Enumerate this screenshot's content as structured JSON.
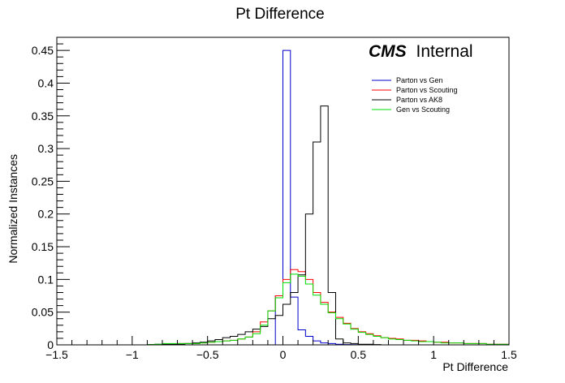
{
  "chart_data": {
    "type": "line",
    "title": "Pt Difference",
    "xlabel": "Pt Difference",
    "ylabel": "Normalized Instances",
    "xlim": [
      -1.5,
      1.5
    ],
    "ylim": [
      0,
      0.47
    ],
    "x_ticks": [
      -1.5,
      -1,
      -0.5,
      0,
      0.5,
      1,
      1.5
    ],
    "x_tick_labels": [
      "−1.5",
      "−1",
      "−0.5",
      "0",
      "0.5",
      "1",
      "1.5"
    ],
    "y_ticks": [
      0,
      0.05,
      0.1,
      0.15,
      0.2,
      0.25,
      0.3,
      0.35,
      0.4,
      0.45
    ],
    "y_tick_labels": [
      "0",
      "0.05",
      "0.1",
      "0.15",
      "0.2",
      "0.25",
      "0.3",
      "0.35",
      "0.4",
      "0.45"
    ],
    "legend_position": "top-right",
    "annotation": {
      "bold": "CMS",
      "text": "Internal"
    },
    "bin_width": 0.05,
    "bin_start": -1.5,
    "series": [
      {
        "name": "Parton vs Gen",
        "color": "#0000cc",
        "values": [
          0,
          0,
          0,
          0,
          0,
          0,
          0,
          0,
          0,
          0,
          0,
          0,
          0,
          0,
          0,
          0,
          0,
          0,
          0,
          0,
          0,
          0,
          0,
          0,
          0,
          0,
          0,
          0,
          0,
          0.075,
          0.45,
          0.073,
          0.023,
          0.013,
          0.006,
          0.003,
          0.002,
          0.001,
          0.0005,
          0.0003,
          0,
          0,
          0,
          0,
          0,
          0,
          0,
          0,
          0,
          0,
          0,
          0,
          0,
          0,
          0,
          0,
          0,
          0,
          0,
          0
        ]
      },
      {
        "name": "Parton vs Scouting",
        "color": "#ff0000",
        "values": [
          0,
          0,
          0,
          0,
          0,
          0,
          0,
          0,
          0,
          0,
          0,
          0,
          0,
          0.0005,
          0.001,
          0.001,
          0.002,
          0.002,
          0.002,
          0.003,
          0.004,
          0.005,
          0.006,
          0.007,
          0.009,
          0.012,
          0.02,
          0.035,
          0.052,
          0.075,
          0.1,
          0.115,
          0.112,
          0.1,
          0.08,
          0.065,
          0.05,
          0.042,
          0.033,
          0.025,
          0.02,
          0.017,
          0.014,
          0.011,
          0.01,
          0.009,
          0.007,
          0.007,
          0.006,
          0.005,
          0.004,
          0.004,
          0.003,
          0.003,
          0.002,
          0.002,
          0.002,
          0.001,
          0.001,
          0.001
        ]
      },
      {
        "name": "Parton vs AK8",
        "color": "#000000",
        "values": [
          0,
          0,
          0,
          0,
          0,
          0,
          0,
          0,
          0,
          0,
          0,
          0,
          0.0005,
          0.001,
          0.001,
          0.001,
          0.001,
          0.002,
          0.003,
          0.004,
          0.006,
          0.008,
          0.011,
          0.013,
          0.016,
          0.02,
          0.024,
          0.028,
          0.04,
          0.045,
          0.062,
          0.08,
          0.107,
          0.2,
          0.31,
          0.365,
          0.08,
          0.009,
          0.003,
          0.002,
          0.001,
          0.001,
          0.0005,
          0,
          0,
          0,
          0,
          0,
          0,
          0,
          0,
          0,
          0,
          0,
          0,
          0,
          0,
          0,
          0,
          0
        ]
      },
      {
        "name": "Gen vs Scouting",
        "color": "#00dd00",
        "values": [
          0,
          0,
          0,
          0,
          0,
          0,
          0,
          0,
          0,
          0,
          0,
          0,
          0.0005,
          0.001,
          0.002,
          0.002,
          0.002,
          0.002,
          0.002,
          0.003,
          0.004,
          0.005,
          0.006,
          0.007,
          0.009,
          0.012,
          0.017,
          0.03,
          0.052,
          0.072,
          0.095,
          0.108,
          0.105,
          0.093,
          0.076,
          0.062,
          0.049,
          0.04,
          0.032,
          0.024,
          0.019,
          0.016,
          0.013,
          0.011,
          0.009,
          0.008,
          0.007,
          0.006,
          0.005,
          0.005,
          0.004,
          0.003,
          0.003,
          0.003,
          0.002,
          0.002,
          0.002,
          0.001,
          0.001,
          0.001
        ]
      }
    ]
  }
}
